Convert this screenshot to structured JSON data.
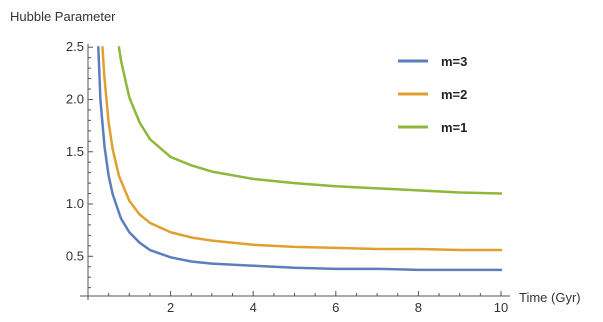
{
  "chart_data": {
    "type": "line",
    "title": "",
    "ylabel": "Hubble Parameter",
    "xlabel": "Time (Gyr)",
    "xlim": [
      0,
      10
    ],
    "ylim": [
      0.12,
      2.55
    ],
    "x_ticks": [
      2,
      4,
      6,
      8,
      10
    ],
    "y_ticks": [
      0.5,
      1.0,
      1.5,
      2.0,
      2.5
    ],
    "x_tick_labels": [
      "2",
      "4",
      "6",
      "8",
      "10"
    ],
    "y_tick_labels": [
      "0.5",
      "1.0",
      "1.5",
      "2.0",
      "2.5"
    ],
    "grid": false,
    "legend_position": "top-right",
    "series": [
      {
        "name": "m=3",
        "color": "#5b7fbd",
        "x": [
          0.25,
          0.3,
          0.4,
          0.5,
          0.6,
          0.8,
          1.0,
          1.25,
          1.5,
          2.0,
          2.5,
          3.0,
          4.0,
          5.0,
          6.0,
          7.0,
          8.0,
          9.0,
          10.0
        ],
        "y": [
          2.5,
          2.0,
          1.55,
          1.27,
          1.09,
          0.86,
          0.73,
          0.63,
          0.56,
          0.49,
          0.45,
          0.43,
          0.41,
          0.39,
          0.38,
          0.38,
          0.37,
          0.37,
          0.37
        ]
      },
      {
        "name": "m=2",
        "color": "#e0a030",
        "x": [
          0.35,
          0.4,
          0.5,
          0.6,
          0.75,
          1.0,
          1.25,
          1.5,
          2.0,
          2.5,
          3.0,
          4.0,
          5.0,
          6.0,
          7.0,
          8.0,
          9.0,
          10.0
        ],
        "y": [
          2.5,
          2.2,
          1.78,
          1.52,
          1.27,
          1.03,
          0.9,
          0.82,
          0.73,
          0.68,
          0.65,
          0.61,
          0.59,
          0.58,
          0.57,
          0.57,
          0.56,
          0.56
        ]
      },
      {
        "name": "m=1",
        "color": "#8db83c",
        "x": [
          0.75,
          0.8,
          1.0,
          1.25,
          1.5,
          2.0,
          2.5,
          3.0,
          4.0,
          5.0,
          6.0,
          7.0,
          8.0,
          9.0,
          10.0
        ],
        "y": [
          2.5,
          2.37,
          2.02,
          1.78,
          1.62,
          1.45,
          1.37,
          1.31,
          1.24,
          1.2,
          1.17,
          1.15,
          1.13,
          1.11,
          1.1
        ]
      }
    ]
  }
}
